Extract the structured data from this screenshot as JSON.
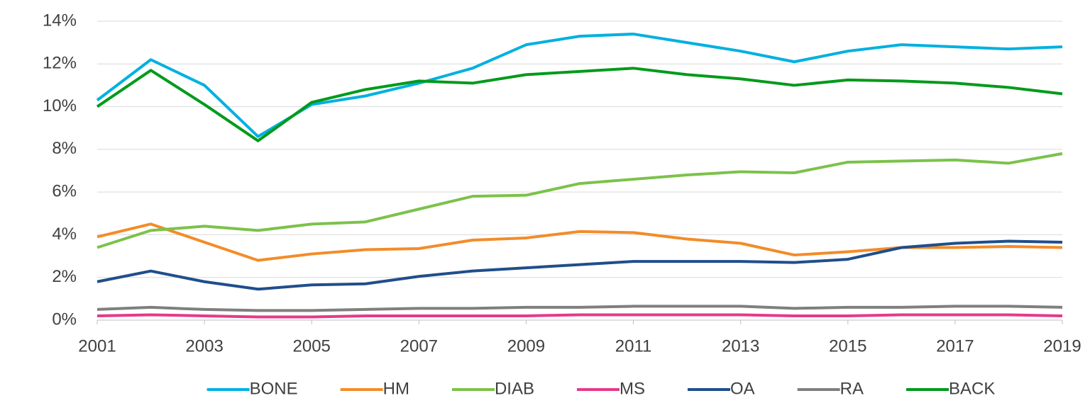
{
  "chart_data": {
    "type": "line",
    "x": [
      2001,
      2002,
      2003,
      2004,
      2005,
      2006,
      2007,
      2008,
      2009,
      2010,
      2011,
      2012,
      2013,
      2014,
      2015,
      2016,
      2017,
      2018,
      2019
    ],
    "xlim": [
      2001,
      2019
    ],
    "xticks": [
      2001,
      2003,
      2005,
      2007,
      2009,
      2011,
      2013,
      2015,
      2017,
      2019
    ],
    "ylim": [
      0,
      14
    ],
    "yticks": [
      {
        "value": 0,
        "label": "0%"
      },
      {
        "value": 2,
        "label": "2%"
      },
      {
        "value": 4,
        "label": "4%"
      },
      {
        "value": 6,
        "label": "6%"
      },
      {
        "value": 8,
        "label": "8%"
      },
      {
        "value": 10,
        "label": "10%"
      },
      {
        "value": 12,
        "label": "12%"
      },
      {
        "value": 14,
        "label": "14%"
      }
    ],
    "grid": true,
    "legend": "bottom",
    "series": [
      {
        "name": "BONE",
        "color": "#00b0e0",
        "values": [
          10.3,
          12.2,
          11.0,
          8.6,
          10.1,
          10.5,
          11.1,
          11.8,
          12.9,
          13.3,
          13.4,
          13.0,
          12.6,
          12.1,
          12.6,
          12.9,
          12.8,
          12.7,
          12.8
        ]
      },
      {
        "name": "HM",
        "color": "#f28c28",
        "values": [
          3.9,
          4.5,
          3.65,
          2.8,
          3.1,
          3.3,
          3.35,
          3.75,
          3.85,
          4.15,
          4.1,
          3.8,
          3.6,
          3.05,
          3.2,
          3.4,
          3.4,
          3.45,
          3.4
        ]
      },
      {
        "name": "DIAB",
        "color": "#7cc24a",
        "values": [
          3.4,
          4.2,
          4.4,
          4.2,
          4.5,
          4.6,
          5.2,
          5.8,
          5.85,
          6.4,
          6.6,
          6.8,
          6.95,
          6.9,
          7.4,
          7.45,
          7.5,
          7.35,
          7.8
        ]
      },
      {
        "name": "MS",
        "color": "#e6398b",
        "values": [
          0.2,
          0.25,
          0.2,
          0.15,
          0.15,
          0.2,
          0.2,
          0.2,
          0.2,
          0.25,
          0.25,
          0.25,
          0.25,
          0.2,
          0.2,
          0.25,
          0.25,
          0.25,
          0.2
        ]
      },
      {
        "name": "OA",
        "color": "#1f4e8c",
        "values": [
          1.8,
          2.3,
          1.8,
          1.45,
          1.65,
          1.7,
          2.05,
          2.3,
          2.45,
          2.6,
          2.75,
          2.75,
          2.75,
          2.7,
          2.85,
          3.4,
          3.6,
          3.7,
          3.65
        ]
      },
      {
        "name": "RA",
        "color": "#7f7f7f",
        "values": [
          0.5,
          0.6,
          0.5,
          0.45,
          0.45,
          0.5,
          0.55,
          0.55,
          0.6,
          0.6,
          0.65,
          0.65,
          0.65,
          0.55,
          0.6,
          0.6,
          0.65,
          0.65,
          0.6
        ]
      },
      {
        "name": "BACK",
        "color": "#009a1a",
        "values": [
          10.0,
          11.7,
          10.1,
          8.4,
          10.2,
          10.8,
          11.2,
          11.1,
          11.5,
          11.65,
          11.8,
          11.5,
          11.3,
          11.0,
          11.25,
          11.2,
          11.1,
          10.9,
          10.6
        ]
      }
    ]
  }
}
